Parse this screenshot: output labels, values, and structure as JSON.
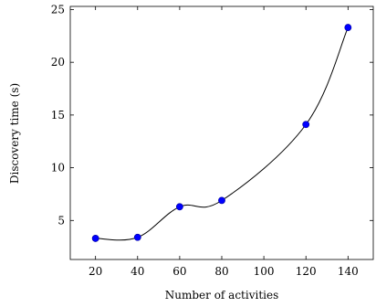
{
  "chart_data": {
    "type": "line",
    "title": "",
    "xlabel": "Number of activities",
    "ylabel": "Discovery time (s)",
    "xlim": [
      8,
      152
    ],
    "ylim": [
      1.3,
      25.3
    ],
    "xticks": [
      20,
      40,
      60,
      80,
      100,
      120,
      140
    ],
    "yticks": [
      5,
      10,
      15,
      20,
      25
    ],
    "grid": false,
    "series": [
      {
        "color": "#0000ff",
        "line_color": "#000000",
        "smooth": true,
        "x": [
          20,
          40,
          60,
          80,
          120,
          140
        ],
        "y": [
          3.3,
          3.4,
          6.3,
          6.9,
          14.1,
          23.3
        ]
      }
    ]
  }
}
